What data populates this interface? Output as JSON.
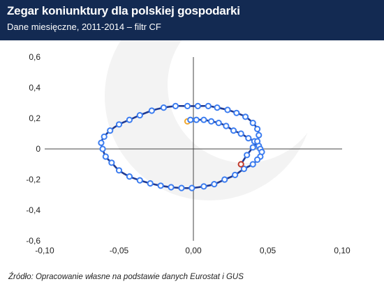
{
  "header": {
    "title": "Zegar koniunktury dla polskiej gospodarki",
    "subtitle": "Dane miesięczne, 2011-2014 – filtr CF"
  },
  "source": "Źródło: Opracowanie własne na podstawie danych Eurostat i GUS",
  "colors": {
    "header_bg": "#132a52",
    "line": "#1f3a93",
    "marker": "#3c7df0",
    "start_marker": "#f0a830",
    "end_marker": "#c0392b"
  },
  "chart_data": {
    "type": "line",
    "title": "",
    "xlabel": "",
    "ylabel": "",
    "xlim": [
      -0.1,
      0.1
    ],
    "ylim": [
      -0.6,
      0.6
    ],
    "x_ticks": [
      "-0,10",
      "-0,05",
      "0,00",
      "0,05",
      "0,10"
    ],
    "y_ticks": [
      "0,6",
      "0,4",
      "0,2",
      "0",
      "-0,2",
      "-0,4",
      "-0,6"
    ],
    "grid": false,
    "series": [
      {
        "x": [
          -0.004,
          -0.002,
          0.002,
          0.007,
          0.012,
          0.017,
          0.022,
          0.027,
          0.032,
          0.037,
          0.041,
          0.044,
          0.045,
          0.046,
          0.045,
          0.043,
          0.04,
          0.034,
          0.028,
          0.021,
          0.014,
          0.007,
          -0.001,
          -0.008,
          -0.015,
          -0.022,
          -0.029,
          -0.036,
          -0.043,
          -0.05,
          -0.055,
          -0.059,
          -0.061,
          -0.062,
          -0.06,
          -0.056,
          -0.05,
          -0.043,
          -0.036,
          -0.028,
          -0.02,
          -0.012,
          -0.004,
          0.003,
          0.01,
          0.016,
          0.023,
          0.029,
          0.035,
          0.04,
          0.043,
          0.044,
          0.043,
          0.04,
          0.036,
          0.032
        ],
        "y": [
          0.18,
          0.19,
          0.19,
          0.19,
          0.18,
          0.17,
          0.15,
          0.12,
          0.1,
          0.07,
          0.05,
          0.02,
          0.0,
          -0.02,
          -0.05,
          -0.07,
          -0.1,
          -0.13,
          -0.17,
          -0.2,
          -0.23,
          -0.245,
          -0.255,
          -0.255,
          -0.25,
          -0.24,
          -0.225,
          -0.205,
          -0.18,
          -0.14,
          -0.09,
          -0.05,
          0.0,
          0.04,
          0.08,
          0.12,
          0.16,
          0.19,
          0.22,
          0.25,
          0.27,
          0.28,
          0.28,
          0.28,
          0.28,
          0.27,
          0.255,
          0.235,
          0.21,
          0.17,
          0.13,
          0.09,
          0.05,
          0.01,
          -0.04,
          -0.1
        ]
      }
    ]
  }
}
